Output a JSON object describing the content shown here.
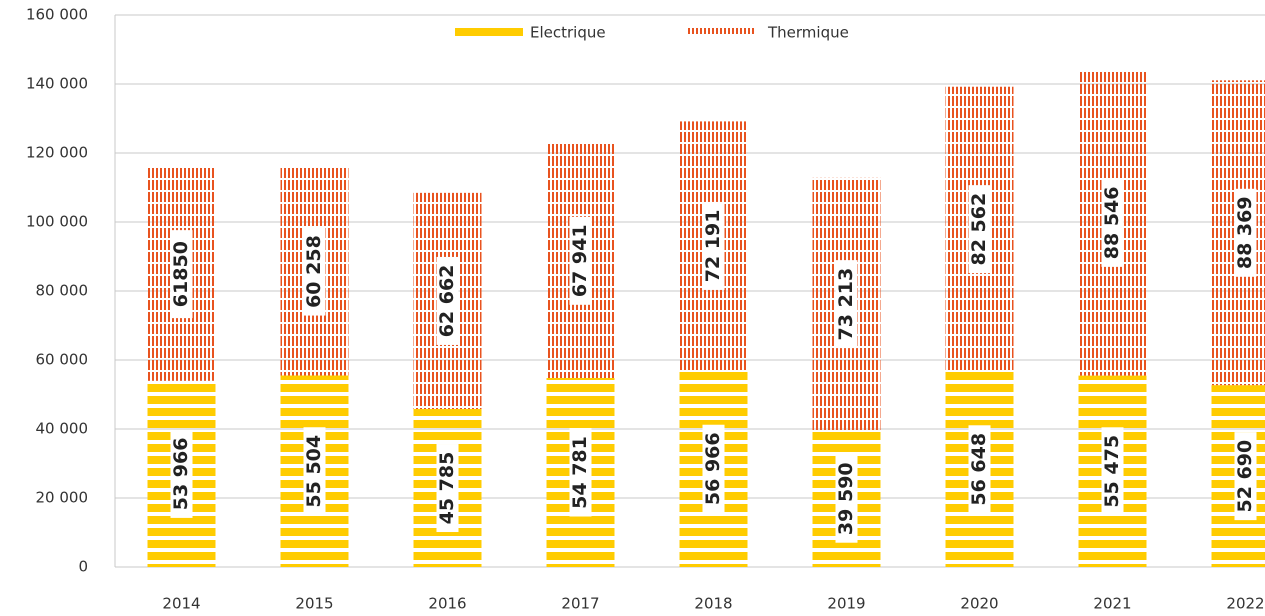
{
  "chart_data": {
    "type": "stacked_bar",
    "categories": [
      "2014",
      "2015",
      "2016",
      "2017",
      "2018",
      "2019",
      "2020",
      "2021",
      "2022"
    ],
    "series": [
      {
        "name": "Electrique",
        "color": "#ffcc00",
        "values": [
          53966,
          55504,
          45785,
          54781,
          56966,
          39590,
          56648,
          55475,
          52690
        ],
        "value_labels": [
          "53 966",
          "55 504",
          "45 785",
          "54 781",
          "56 966",
          "39 590",
          "56 648",
          "55 475",
          "52 690"
        ]
      },
      {
        "name": "Thermique",
        "color": "#e8531f",
        "values": [
          61850,
          60258,
          62662,
          67941,
          72191,
          73213,
          82562,
          88546,
          88369
        ],
        "value_labels": [
          "61850",
          "60 258",
          "62 662",
          "67 941",
          "72 191",
          "73 213",
          "82 562",
          "88 546",
          "88 369"
        ]
      }
    ],
    "ylim": [
      0,
      160000
    ],
    "yticks": [
      0,
      {
        "value": 20000,
        "label": "20 000"
      },
      {
        "value": 40000,
        "label": "40 000"
      },
      {
        "value": 60000,
        "label": "60 000"
      },
      {
        "value": 80000,
        "label": "80 000"
      },
      {
        "value": 100000,
        "label": "100 000"
      },
      {
        "value": 120000,
        "label": "120 000"
      },
      {
        "value": 140000,
        "label": "140 000"
      },
      {
        "value": 160000,
        "label": "160 000"
      }
    ],
    "grid": true,
    "legend": "top"
  }
}
